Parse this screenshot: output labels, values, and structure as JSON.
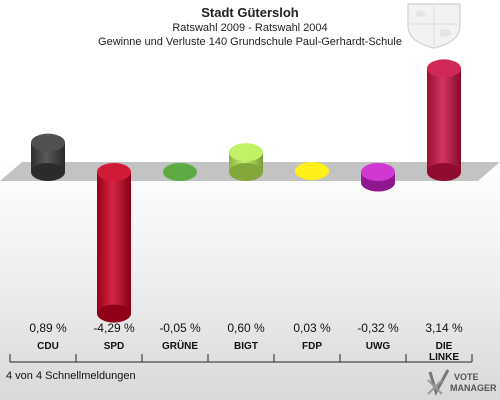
{
  "header": {
    "title": "Stadt Gütersloh",
    "subtitle": "Ratswahl 2009 - Ratswahl 2004",
    "description": "Gewinne und Verluste 140 Grundschule Paul-Gerhardt-Schule"
  },
  "footer": {
    "note": "4 von 4 Schnellmeldungen",
    "logo_line1": "VOTE",
    "logo_line2": "MANAGER"
  },
  "chart_data": {
    "type": "bar",
    "categories": [
      "CDU",
      "SPD",
      "GRÜNE",
      "BIGT",
      "FDP",
      "UWG",
      "DIE LINKE"
    ],
    "category_lines": [
      [
        "CDU"
      ],
      [
        "SPD"
      ],
      [
        "GRÜNE"
      ],
      [
        "BIGT"
      ],
      [
        "FDP"
      ],
      [
        "UWG"
      ],
      [
        "DIE",
        "LINKE"
      ]
    ],
    "values": [
      0.89,
      -4.29,
      -0.05,
      0.6,
      0.03,
      -0.32,
      3.14
    ],
    "value_labels": [
      "0,89 %",
      "-4,29 %",
      "-0,05 %",
      "0,60 %",
      "0,03 %",
      "-0,32 %",
      "3,14 %"
    ],
    "colors": [
      "#3d3d3d",
      "#cc0022",
      "#4aa02c",
      "#bbee55",
      "#ffee00",
      "#cc22cc",
      "#cc1144"
    ],
    "baseline": 0,
    "grid": false,
    "legend": "none"
  }
}
